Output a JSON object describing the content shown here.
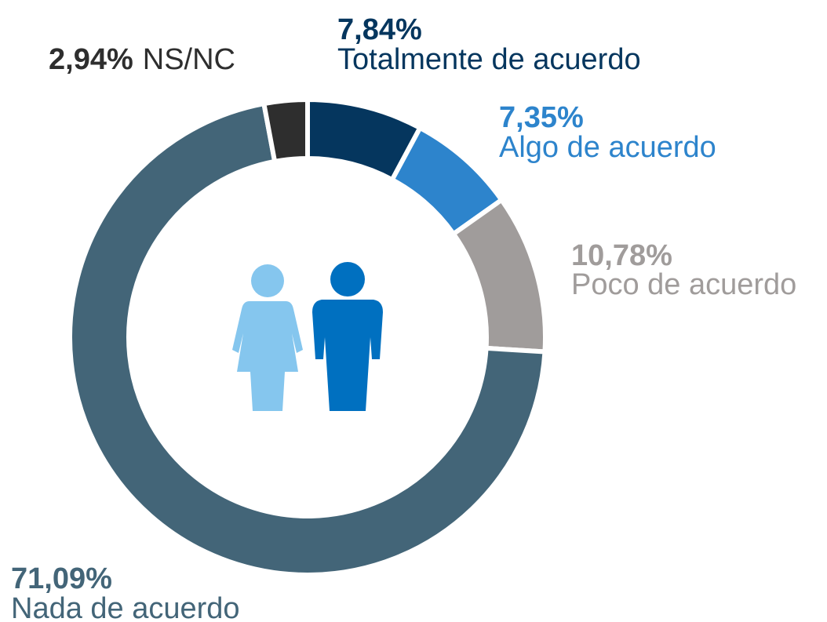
{
  "chart_data": {
    "type": "donut",
    "categories": [
      "Totalmente de acuerdo",
      "Algo de acuerdo",
      "Poco de acuerdo",
      "Nada de acuerdo",
      "NS/NC"
    ],
    "values": [
      7.84,
      7.35,
      10.78,
      71.09,
      2.94
    ],
    "value_labels": [
      "7,84%",
      "7,35%",
      "10,78%",
      "71,09%",
      "2,94%"
    ],
    "colors": [
      "#05365e",
      "#2d84cc",
      "#a09c9b",
      "#436578",
      "#2e2e2e"
    ]
  }
}
